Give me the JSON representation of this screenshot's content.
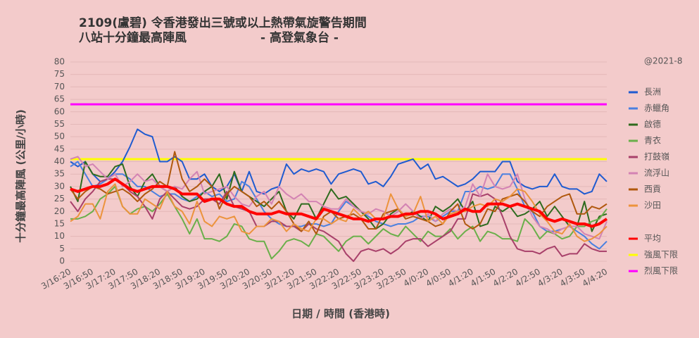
{
  "chart_data": {
    "type": "line",
    "title": "2109(盧碧)  令香港發出三號或以上熱帶氣旋警告期間",
    "subtitle": "八站十分鐘最高陣風",
    "source": "- 高登氣象台 -",
    "watermark": "@2021-8",
    "x_label": "日期 / 時間 (香港時)",
    "y_label": "十分鐘最高陣風 (公里/小時)",
    "ylim": [
      0,
      80
    ],
    "yticks": [
      0,
      5,
      10,
      15,
      20,
      25,
      30,
      35,
      40,
      45,
      50,
      55,
      60,
      65,
      70,
      75,
      80
    ],
    "grid": true,
    "legend": "right",
    "categories": [
      "3/16:20",
      null,
      null,
      "3/16:50",
      null,
      null,
      "3/17:20",
      null,
      null,
      "3/17:50",
      null,
      null,
      "3/18:20",
      null,
      null,
      "3/18:50",
      null,
      null,
      "3/19:20",
      null,
      null,
      "3/19:50",
      null,
      null,
      "3/20:20",
      null,
      null,
      "3/20:50",
      null,
      null,
      "3/21:20",
      null,
      null,
      "3/21:50",
      null,
      null,
      "3/22:20",
      null,
      null,
      "3/22:50",
      null,
      null,
      "3/23:20",
      null,
      null,
      "3/23:50",
      null,
      null,
      "4/0:20",
      null,
      null,
      "4/0:50",
      null,
      null,
      "4/1:20",
      null,
      null,
      "4/1:50",
      null,
      null,
      "4/2:20",
      null,
      null,
      "4/2:50",
      null,
      null,
      "4/3:20",
      null,
      null,
      "4/3:50",
      null,
      null,
      "4/4:20"
    ],
    "series": [
      {
        "name": "長洲",
        "color": "#1f5bd0",
        "width": 2,
        "values": [
          40,
          38,
          40,
          35,
          32,
          33,
          36,
          40,
          46,
          53,
          51,
          50,
          40,
          40,
          42,
          40,
          33,
          33,
          35,
          30,
          28,
          30,
          35,
          28,
          36,
          28,
          27,
          29,
          30,
          39,
          35,
          37,
          36,
          37,
          36,
          31,
          35,
          36,
          37,
          36,
          31,
          32,
          30,
          34,
          39,
          40,
          41,
          37,
          39,
          33,
          34,
          32,
          30,
          31,
          33,
          36,
          36,
          36,
          40,
          40,
          32,
          30,
          29,
          30,
          30,
          35,
          30,
          29,
          29,
          27,
          28,
          35,
          32
        ]
      },
      {
        "name": "赤鱲角",
        "color": "#4a80e0",
        "width": 2,
        "values": [
          38,
          40,
          35,
          30,
          31,
          33,
          35,
          35,
          33,
          30,
          30,
          28,
          26,
          27,
          27,
          25,
          24,
          26,
          28,
          26,
          27,
          24,
          25,
          32,
          30,
          25,
          20,
          17,
          15,
          14,
          14,
          14,
          15,
          15,
          14,
          15,
          20,
          24,
          22,
          20,
          18,
          16,
          15,
          14,
          15,
          15,
          16,
          18,
          18,
          16,
          18,
          20,
          20,
          28,
          28,
          30,
          29,
          30,
          35,
          35,
          29,
          22,
          20,
          14,
          12,
          12,
          13,
          14,
          12,
          10,
          7,
          5,
          8
        ]
      },
      {
        "name": "啟德",
        "color": "#2e6b1e",
        "width": 2,
        "values": [
          30,
          24,
          40,
          35,
          34,
          34,
          38,
          39,
          30,
          26,
          32,
          35,
          30,
          28,
          30,
          26,
          24,
          25,
          28,
          30,
          35,
          25,
          36,
          28,
          26,
          24,
          22,
          25,
          28,
          20,
          17,
          23,
          23,
          17,
          23,
          29,
          25,
          26,
          23,
          20,
          17,
          13,
          15,
          19,
          21,
          18,
          20,
          18,
          16,
          22,
          20,
          22,
          25,
          20,
          24,
          14,
          15,
          22,
          20,
          22,
          18,
          19,
          21,
          24,
          18,
          22,
          18,
          14,
          14,
          24,
          12,
          18,
          19
        ]
      },
      {
        "name": "青衣",
        "color": "#6aaf4a",
        "width": 2,
        "values": [
          17,
          17,
          18,
          20,
          25,
          27,
          30,
          22,
          19,
          21,
          22,
          20,
          23,
          27,
          22,
          17,
          11,
          17,
          9,
          9,
          8,
          10,
          15,
          14,
          9,
          8,
          8,
          1,
          4,
          8,
          9,
          8,
          6,
          11,
          10,
          7,
          4,
          8,
          10,
          10,
          7,
          10,
          13,
          11,
          10,
          14,
          11,
          8,
          12,
          10,
          10,
          13,
          9,
          12,
          14,
          8,
          12,
          11,
          9,
          9,
          8,
          17,
          14,
          9,
          12,
          11,
          9,
          10,
          14,
          14,
          16,
          17,
          21
        ]
      },
      {
        "name": "打鼓嶺",
        "color": "#a8406a",
        "width": 2,
        "values": [
          24,
          20,
          25,
          28,
          32,
          33,
          33,
          31,
          28,
          26,
          22,
          17,
          25,
          28,
          25,
          22,
          21,
          22,
          25,
          25,
          23,
          28,
          22,
          21,
          20,
          14,
          14,
          16,
          16,
          14,
          14,
          12,
          15,
          13,
          12,
          10,
          8,
          3,
          0,
          4,
          5,
          4,
          5,
          3,
          5,
          8,
          9,
          9,
          6,
          8,
          10,
          12,
          17,
          17,
          27,
          26,
          27,
          25,
          18,
          10,
          5,
          4,
          4,
          3,
          5,
          6,
          2,
          3,
          3,
          7,
          5,
          4,
          4
        ]
      },
      {
        "name": "流浮山",
        "color": "#d383b3",
        "width": 2,
        "values": [
          41,
          42,
          38,
          39,
          36,
          33,
          35,
          30,
          32,
          35,
          32,
          33,
          30,
          28,
          30,
          29,
          33,
          36,
          27,
          28,
          29,
          30,
          26,
          23,
          22,
          26,
          28,
          23,
          30,
          27,
          25,
          27,
          24,
          24,
          22,
          21,
          21,
          25,
          22,
          20,
          19,
          21,
          20,
          18,
          20,
          23,
          20,
          17,
          19,
          16,
          19,
          21,
          20,
          22,
          31,
          26,
          35,
          30,
          29,
          30,
          35,
          25,
          18,
          14,
          13,
          11,
          13,
          14,
          14,
          11,
          10,
          9,
          16
        ]
      },
      {
        "name": "西貢",
        "color": "#b0580e",
        "width": 2,
        "values": [
          29,
          25,
          28,
          30,
          29,
          27,
          28,
          29,
          27,
          24,
          27,
          29,
          32,
          30,
          44,
          33,
          28,
          30,
          33,
          30,
          21,
          27,
          30,
          28,
          26,
          22,
          24,
          21,
          24,
          20,
          15,
          12,
          16,
          11,
          18,
          20,
          17,
          18,
          19,
          17,
          13,
          13,
          19,
          20,
          21,
          17,
          18,
          17,
          16,
          14,
          15,
          20,
          23,
          15,
          13,
          15,
          21,
          20,
          25,
          26,
          27,
          24,
          20,
          18,
          22,
          24,
          26,
          27,
          19,
          19,
          22,
          21,
          23
        ]
      },
      {
        "name": "沙田",
        "color": "#ec933c",
        "width": 2,
        "values": [
          16,
          18,
          23,
          23,
          17,
          28,
          31,
          22,
          19,
          19,
          25,
          23,
          21,
          28,
          22,
          20,
          15,
          24,
          16,
          14,
          18,
          17,
          18,
          12,
          11,
          14,
          14,
          17,
          16,
          12,
          15,
          13,
          12,
          17,
          17,
          15,
          17,
          16,
          21,
          18,
          20,
          17,
          17,
          27,
          21,
          18,
          19,
          26,
          16,
          18,
          15,
          19,
          20,
          20,
          22,
          23,
          22,
          25,
          24,
          26,
          29,
          28,
          24,
          19,
          16,
          12,
          11,
          15,
          10,
          8,
          9,
          11,
          14
        ]
      },
      {
        "name": "平均",
        "color": "#ff0000",
        "width": 4,
        "values": [
          29,
          28,
          29,
          30,
          30,
          31,
          33,
          31,
          29,
          28,
          29,
          30,
          30,
          30,
          29,
          27,
          27,
          27,
          24,
          25,
          25,
          23,
          22,
          22,
          20,
          19,
          19,
          19,
          20,
          19,
          19,
          19,
          18,
          17,
          21,
          20,
          19,
          18,
          17,
          17,
          16,
          17,
          17,
          18,
          18,
          19,
          19,
          20,
          20,
          19,
          17,
          18,
          19,
          21,
          20,
          20,
          23,
          23,
          23,
          22,
          23,
          22,
          21,
          20,
          17,
          16,
          17,
          16,
          15,
          15,
          14,
          15,
          17
        ]
      }
    ],
    "reference_lines": [
      {
        "name": "強風下限",
        "value": 41,
        "color": "#ffff00"
      },
      {
        "name": "烈風下限",
        "value": 63,
        "color": "#ff00ff"
      }
    ]
  }
}
